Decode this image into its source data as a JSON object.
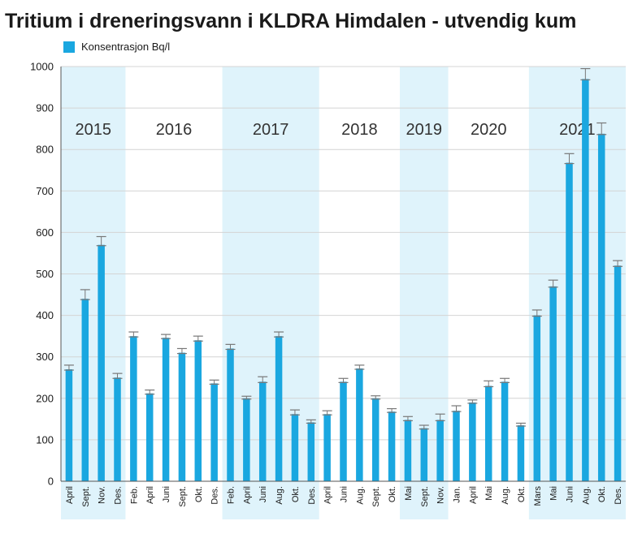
{
  "chart_data": {
    "type": "bar",
    "title": "Tritium i dreneringsvann i KLDRA Himdalen - utvendig kum",
    "series": [
      {
        "name": "Konsentrasjon Bq/l",
        "values": [
          270,
          440,
          570,
          250,
          350,
          212,
          346,
          310,
          340,
          236,
          320,
          200,
          240,
          350,
          162,
          142,
          162,
          240,
          272,
          200,
          168,
          148,
          128,
          148,
          170,
          190,
          230,
          240,
          135,
          400,
          470,
          768,
          970,
          838,
          520
        ],
        "error_high": [
          280,
          462,
          590,
          260,
          360,
          220,
          354,
          320,
          350,
          244,
          330,
          205,
          252,
          360,
          172,
          148,
          170,
          248,
          280,
          206,
          175,
          156,
          135,
          162,
          182,
          196,
          242,
          248,
          140,
          413,
          485,
          790,
          995,
          864,
          532
        ]
      }
    ],
    "categories": [
      "April",
      "Sept.",
      "Nov.",
      "Des.",
      "Feb.",
      "April",
      "Juni",
      "Sept.",
      "Okt.",
      "Des.",
      "Feb.",
      "April",
      "Juni",
      "Aug.",
      "Okt.",
      "Des.",
      "April",
      "Juni",
      "Aug.",
      "Sept.",
      "Okt.",
      "Mai",
      "Sept.",
      "Nov.",
      "Jan.",
      "April",
      "Mai",
      "Aug.",
      "Okt.",
      "Mars",
      "Mai",
      "Juni",
      "Aug.",
      "Okt.",
      "Des."
    ],
    "years": [
      {
        "label": "2015",
        "first": 0,
        "last": 3,
        "shaded": true
      },
      {
        "label": "2016",
        "first": 4,
        "last": 9,
        "shaded": false
      },
      {
        "label": "2017",
        "first": 10,
        "last": 15,
        "shaded": true
      },
      {
        "label": "2018",
        "first": 16,
        "last": 20,
        "shaded": false
      },
      {
        "label": "2019",
        "first": 21,
        "last": 23,
        "shaded": true
      },
      {
        "label": "2020",
        "first": 24,
        "last": 28,
        "shaded": false
      },
      {
        "label": "2021",
        "first": 29,
        "last": 34,
        "shaded": true
      }
    ],
    "ylim": [
      0,
      1000
    ],
    "yticks": [
      0,
      100,
      200,
      300,
      400,
      500,
      600,
      700,
      800,
      900,
      1000
    ],
    "xlabel": "",
    "ylabel": "",
    "grid": true,
    "legend_position": "top-left",
    "colors": {
      "bar": "#1aa7e0",
      "band": "#dff3fb",
      "grid": "#d4d4d4",
      "error": "#777777"
    }
  }
}
